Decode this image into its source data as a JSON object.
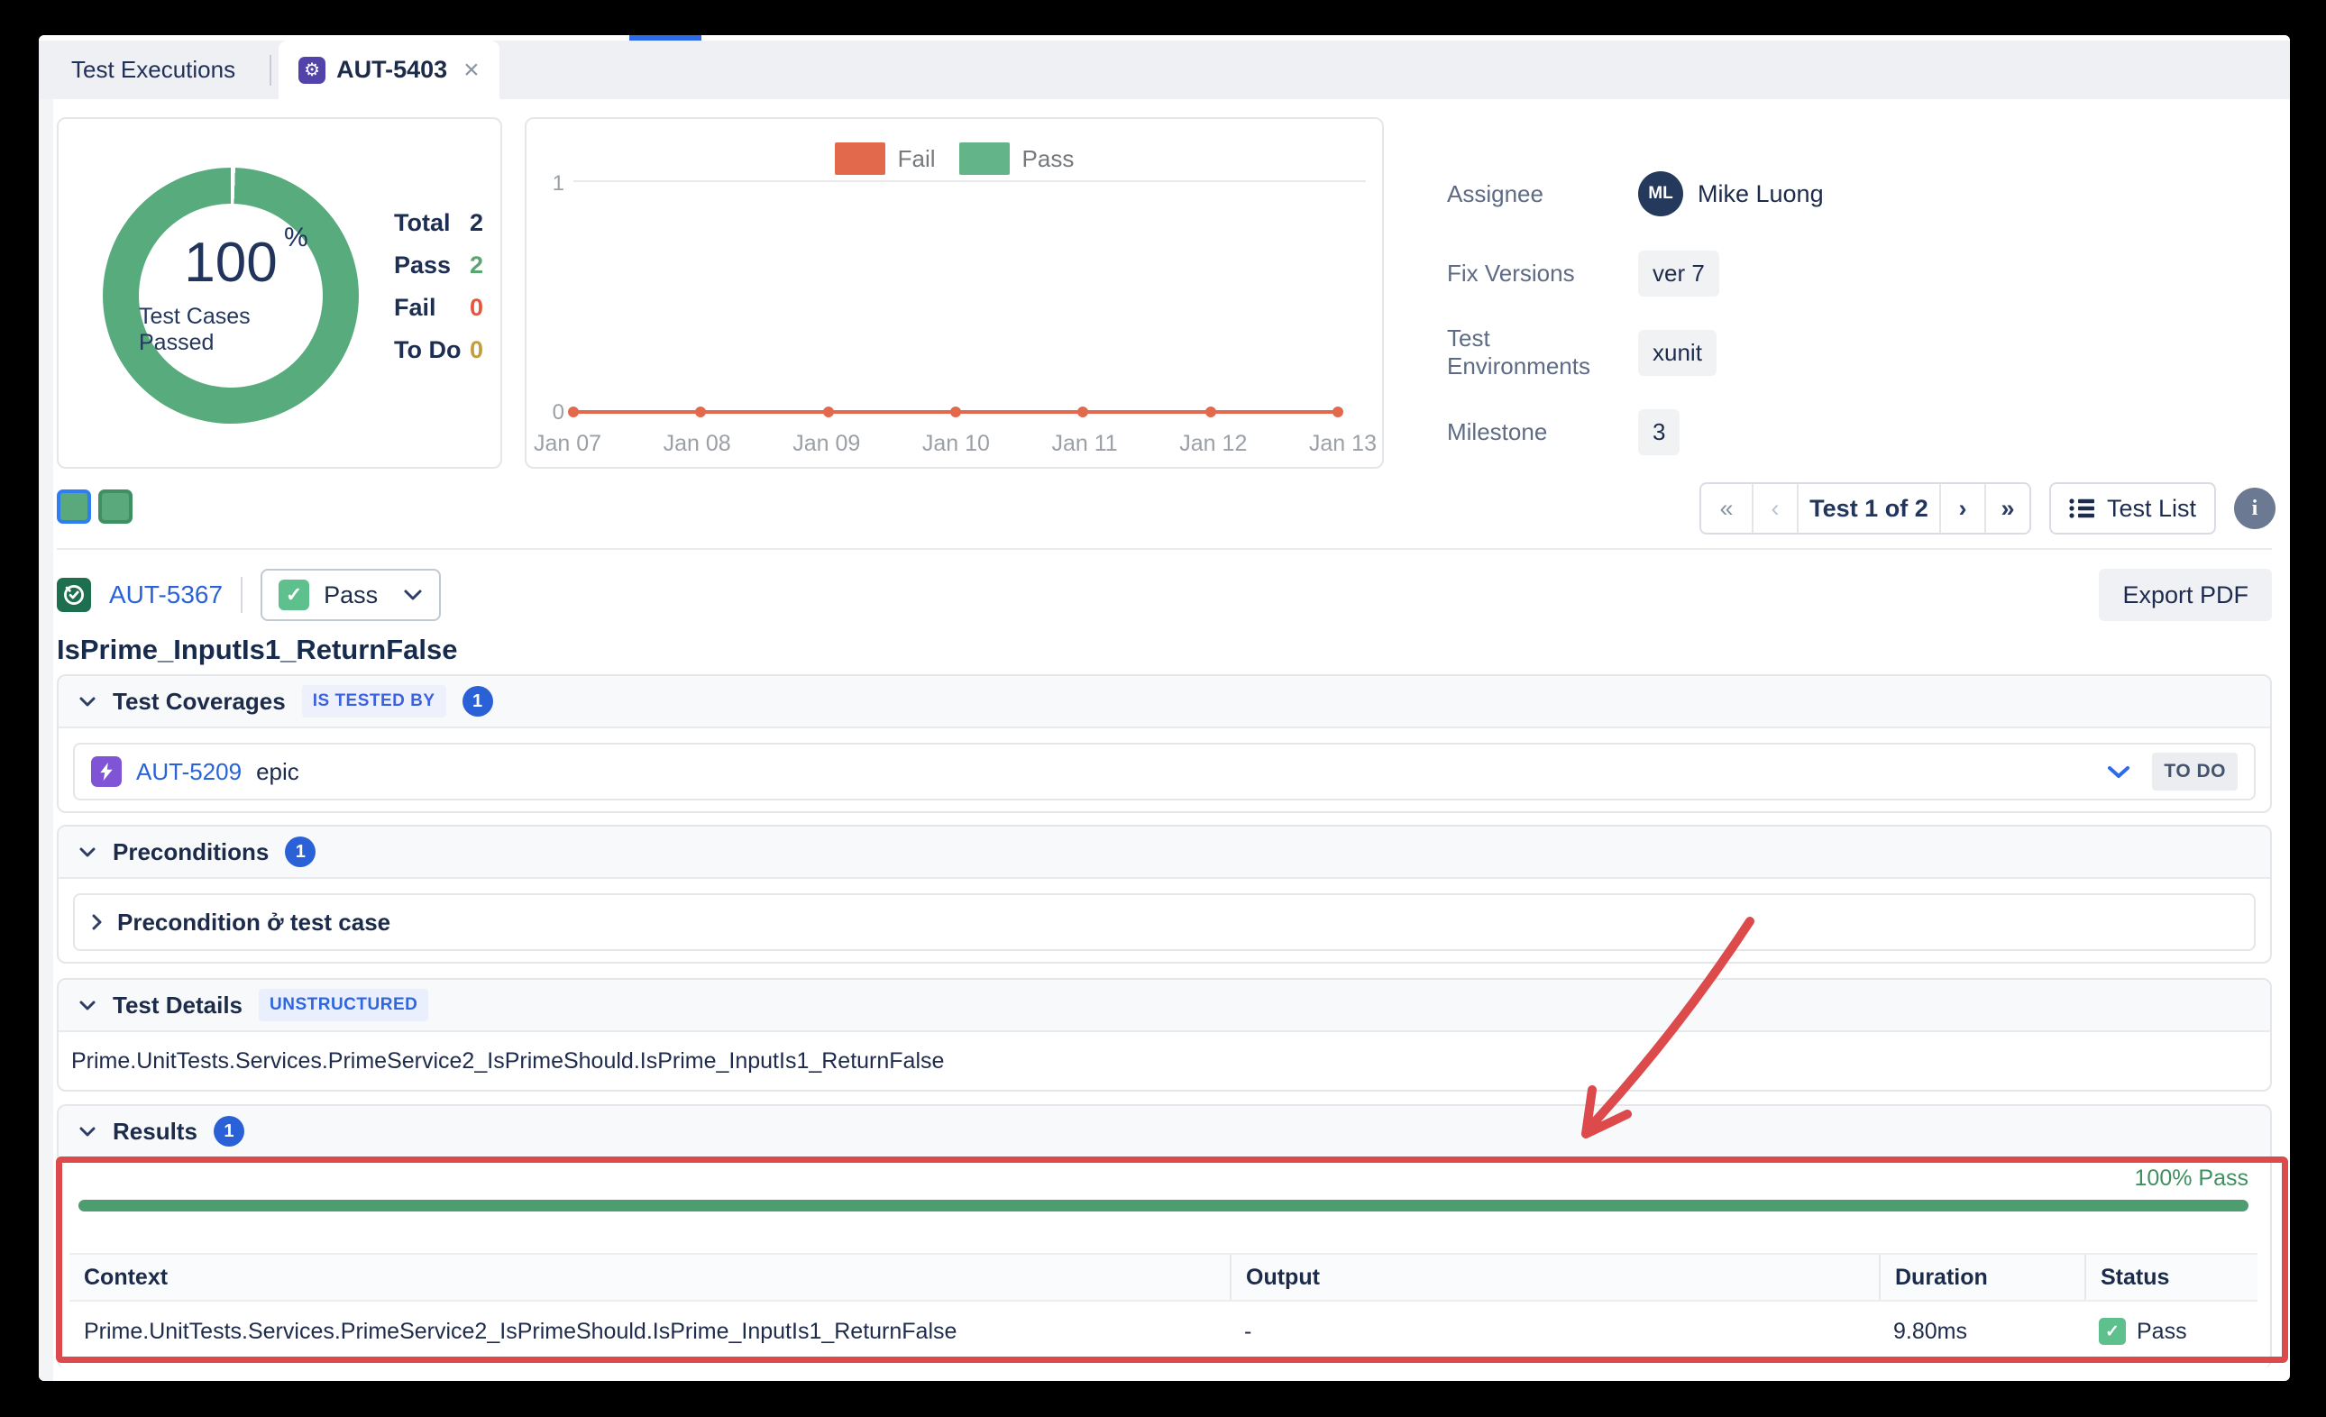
{
  "colors": {
    "accent_blue": "#2b61d6",
    "pass_green": "#57ab7d",
    "fail_orange": "#e2694c",
    "todo_gold": "#c29d3a",
    "annotation_red": "#dc4a4b"
  },
  "tabs": {
    "executions": "Test Executions",
    "active": "AUT-5403",
    "close": "×"
  },
  "summary_panel": {
    "percent": "100",
    "percent_unit": "%",
    "caption": "Test Cases Passed",
    "stats": [
      {
        "label": "Total",
        "value": "2"
      },
      {
        "label": "Pass",
        "value": "2"
      },
      {
        "label": "Fail",
        "value": "0"
      },
      {
        "label": "To Do",
        "value": "0"
      }
    ]
  },
  "chart_data": [
    {
      "type": "pie",
      "subtype": "donut",
      "title": "Test Cases Passed",
      "center_label": "100%",
      "slices": [
        {
          "label": "Pass",
          "value": 100,
          "color": "#57ab7d"
        }
      ]
    },
    {
      "type": "line",
      "x": [
        "Jan 07",
        "Jan 08",
        "Jan 09",
        "Jan 10",
        "Jan 11",
        "Jan 12",
        "Jan 13"
      ],
      "series": [
        {
          "name": "Fail",
          "color": "#e2694c",
          "values": [
            0,
            0,
            0,
            0,
            0,
            0,
            0
          ]
        },
        {
          "name": "Pass",
          "color": "#63b488",
          "values": [
            0,
            0,
            0,
            0,
            0,
            0,
            0
          ]
        }
      ],
      "ylim": [
        0,
        1
      ],
      "yticks": [
        "1",
        "0"
      ],
      "legend_position": "top-center",
      "grid": "horizontal"
    }
  ],
  "details_panel": {
    "fields": [
      {
        "label": "Assignee",
        "value": "Mike Luong",
        "avatar": "ML"
      },
      {
        "label": "Fix Versions",
        "value": "ver 7"
      },
      {
        "label": "Test Environments",
        "value": "xunit"
      },
      {
        "label": "Milestone",
        "value": "3"
      }
    ]
  },
  "toolbar": {
    "first": "«",
    "prev": "‹",
    "page_label": "Test 1 of 2",
    "next": "›",
    "last": "»",
    "test_list": "Test List",
    "info": "i"
  },
  "test_header": {
    "key": "AUT-5367",
    "status": "Pass",
    "check": "✓",
    "title": "IsPrime_InputIs1_ReturnFalse",
    "export": "Export PDF"
  },
  "sections": {
    "coverages": {
      "title": "Test Coverages",
      "relation_badge": "IS TESTED BY",
      "count": "1",
      "item": {
        "key": "AUT-5209",
        "name": "epic",
        "status": "TO DO"
      }
    },
    "preconditions": {
      "title": "Preconditions",
      "count": "1",
      "item": "Precondition ở test case"
    },
    "test_details": {
      "title": "Test Details",
      "badge": "UNSTRUCTURED",
      "body": "Prime.UnitTests.Services.PrimeService2_IsPrimeShould.IsPrime_InputIs1_ReturnFalse"
    },
    "results": {
      "title": "Results",
      "count": "1",
      "pass_summary": "100% Pass",
      "table": {
        "headers": [
          "Context",
          "Output",
          "Duration",
          "Status"
        ],
        "rows": [
          {
            "context": "Prime.UnitTests.Services.PrimeService2_IsPrimeShould.IsPrime_InputIs1_ReturnFalse",
            "output": "-",
            "duration": "9.80ms",
            "status": "Pass",
            "check": "✓"
          }
        ]
      }
    }
  }
}
